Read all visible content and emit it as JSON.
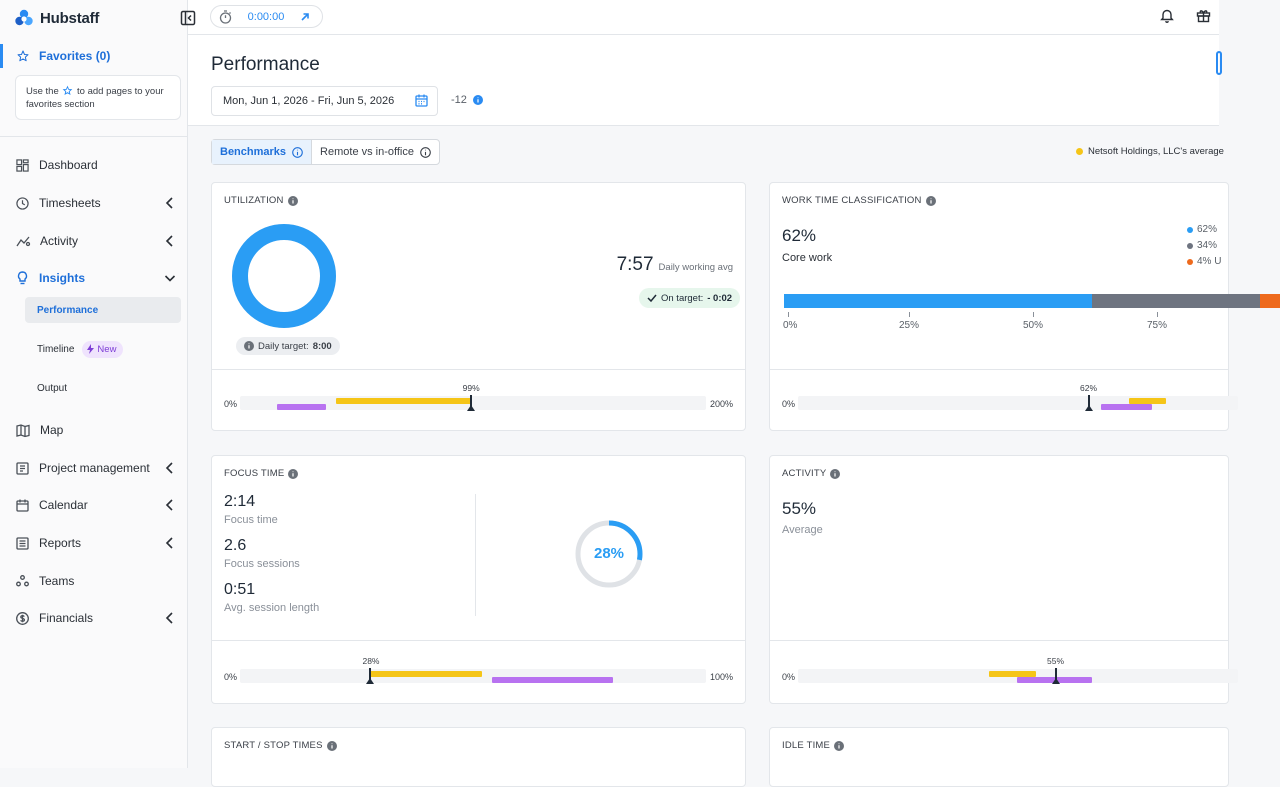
{
  "app": {
    "logo_text": "Hubstaff"
  },
  "colors": {
    "accent": "#2a8bf2",
    "org_avg": "#f5c518",
    "team": "#b872f0",
    "core": "#2a9df4",
    "nonCore": "#6e7480",
    "unproductive": "#ee6a1d"
  },
  "sidebar": {
    "favorites_label": "Favorites (0)",
    "favorites_hint_pre": "Use the",
    "favorites_hint_post": "to add pages to your favorites section",
    "items": [
      {
        "label": "Dashboard",
        "icon": "dashboard-icon"
      },
      {
        "label": "Timesheets",
        "icon": "clock-icon"
      },
      {
        "label": "Activity",
        "icon": "activity-icon"
      },
      {
        "label": "Insights",
        "icon": "lightbulb-icon"
      },
      {
        "label": "Map",
        "icon": "map-icon"
      },
      {
        "label": "Project management",
        "icon": "project-icon"
      },
      {
        "label": "Calendar",
        "icon": "calendar-icon"
      },
      {
        "label": "Reports",
        "icon": "reports-icon"
      },
      {
        "label": "Teams",
        "icon": "teams-icon"
      },
      {
        "label": "Financials",
        "icon": "dollar-icon"
      }
    ],
    "insights_sub": [
      {
        "label": "Performance"
      },
      {
        "label": "Timeline",
        "badge": "New"
      },
      {
        "label": "Output"
      }
    ]
  },
  "topbar": {
    "timer": "0:00:00"
  },
  "header": {
    "title": "Performance",
    "date_range": "Mon, Jun 1, 2026 - Fri, Jun 5, 2026",
    "timezone": "-12"
  },
  "tabs": [
    {
      "label": "Benchmarks"
    },
    {
      "label": "Remote vs in-office"
    }
  ],
  "legend_top": "Netsoft Holdings, LLC's average",
  "utilization": {
    "title": "UTILIZATION",
    "ring_percent": 100,
    "daily_avg": "7:57",
    "daily_avg_label": "Daily working avg",
    "on_target_label": "On target:",
    "on_target_value": "- 0:02",
    "daily_target_label": "Daily target:",
    "daily_target_value": "8:00",
    "bench": {
      "min": "0%",
      "max": "200%",
      "marker_label": "99%",
      "marker": 99,
      "scale_max": 200,
      "org": [
        41,
        99
      ],
      "team": [
        16,
        37
      ]
    }
  },
  "work_time": {
    "title": "WORK TIME CLASSIFICATION",
    "value": "62%",
    "label": "Core work",
    "legend": [
      "62%",
      "34%",
      "4% U"
    ],
    "segments": [
      62,
      34,
      4
    ],
    "axis": [
      "0%",
      "25%",
      "50%",
      "75%"
    ],
    "bench": {
      "min": "0%",
      "marker_label": "62%",
      "marker": 62
    }
  },
  "focus": {
    "title": "FOCUS TIME",
    "time": "2:14",
    "time_label": "Focus time",
    "sessions": "2.6",
    "sessions_label": "Focus sessions",
    "avg_len": "0:51",
    "avg_len_label": "Avg. session length",
    "ring_label": "28%",
    "ring_percent": 28,
    "bench": {
      "min": "0%",
      "max": "100%",
      "marker_label": "28%",
      "marker": 28,
      "scale_max": 100,
      "org": [
        28,
        52
      ],
      "team": [
        54,
        80
      ]
    }
  },
  "activity": {
    "title": "ACTIVITY",
    "value": "55%",
    "label": "Average",
    "bench": {
      "min": "0%",
      "marker_label": "55%",
      "marker": 55
    }
  },
  "start_stop": {
    "title": "START / STOP TIMES"
  },
  "idle": {
    "title": "IDLE TIME"
  }
}
